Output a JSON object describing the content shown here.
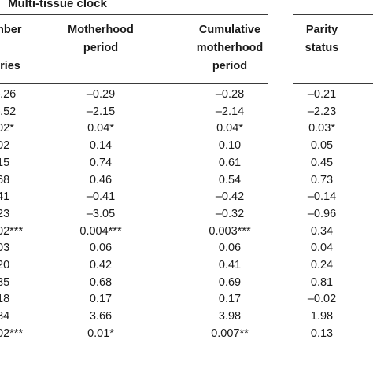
{
  "table": {
    "group_title": "Multi-tissue clock",
    "headers": [
      {
        "lines": [
          "mber",
          "f",
          "eries"
        ]
      },
      {
        "lines": [
          "Motherhood",
          "period"
        ]
      },
      {
        "lines": [
          "Cumulative",
          "motherhood",
          "period"
        ]
      },
      {
        "lines": [
          "Parity",
          "status"
        ]
      }
    ],
    "rows": [
      [
        "–.26",
        "–0.29",
        "–0.28",
        "–0.21"
      ],
      [
        "–.52",
        "–2.15",
        "–2.14",
        "–2.23"
      ],
      [
        ".02*",
        "0.04*",
        "0.04*",
        "0.03*"
      ],
      [
        ".02",
        "0.14",
        "0.10",
        "0.05"
      ],
      [
        ".15",
        "0.74",
        "0.61",
        "0.45"
      ],
      [
        ".68",
        "0.46",
        "0.54",
        "0.73"
      ],
      [
        ".41",
        "–0.41",
        "–0.42",
        "–0.14"
      ],
      [
        ".23",
        "–3.05",
        "–0.32",
        "–0.96"
      ],
      [
        ".02***",
        "0.004***",
        "0.003***",
        "0.34"
      ],
      [
        ".03",
        "0.06",
        "0.06",
        "0.04"
      ],
      [
        ".20",
        "0.42",
        "0.41",
        "0.24"
      ],
      [
        ".85",
        "0.68",
        "0.69",
        "0.81"
      ],
      [
        ".18",
        "0.17",
        "0.17",
        "–0.02"
      ],
      [
        ".84",
        "3.66",
        "3.98",
        "1.98"
      ],
      [
        ".02***",
        "0.01*",
        "0.007**",
        "0.13"
      ]
    ]
  }
}
